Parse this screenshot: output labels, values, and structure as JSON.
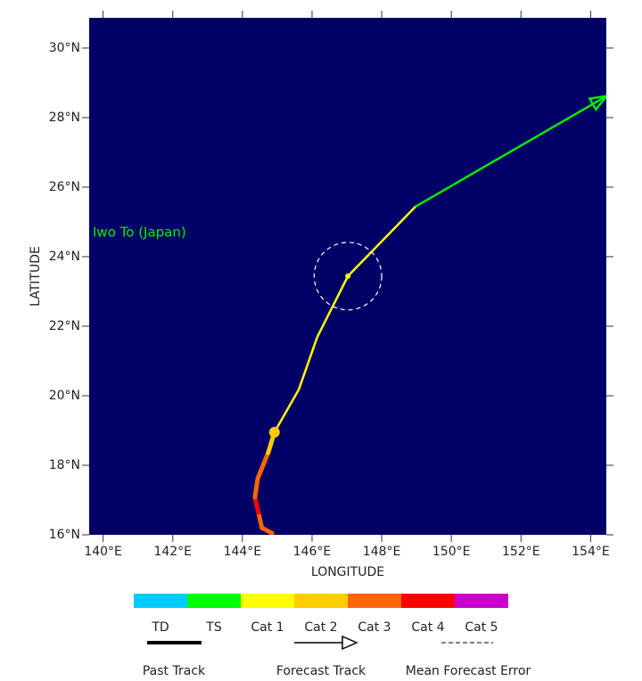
{
  "chart_data": {
    "type": "track",
    "background": "#000066",
    "xlabel": "LONGITUDE",
    "ylabel": "LATITUDE",
    "xlim": [
      139.6,
      154.45
    ],
    "ylim": [
      16,
      30.87
    ],
    "xticks": [
      {
        "value": 140,
        "label": "140°E"
      },
      {
        "value": 142,
        "label": "142°E"
      },
      {
        "value": 144,
        "label": "144°E"
      },
      {
        "value": 146,
        "label": "146°E"
      },
      {
        "value": 148,
        "label": "148°E"
      },
      {
        "value": 150,
        "label": "150°E"
      },
      {
        "value": 152,
        "label": "152°E"
      },
      {
        "value": 154,
        "label": "154°E"
      }
    ],
    "yticks": [
      {
        "value": 16,
        "label": "16°N"
      },
      {
        "value": 18,
        "label": "18°N"
      },
      {
        "value": 20,
        "label": "20°N"
      },
      {
        "value": 22,
        "label": "22°N"
      },
      {
        "value": 24,
        "label": "24°N"
      },
      {
        "value": 26,
        "label": "26°N"
      },
      {
        "value": 28,
        "label": "28°N"
      },
      {
        "value": 30,
        "label": "30°N"
      }
    ],
    "place_label": "Iwo To (Japan)",
    "place_color": "#00ee00",
    "past_track": {
      "lon": [
        144.85,
        144.56,
        144.46,
        144.36,
        144.44,
        144.74,
        144.92
      ],
      "lat": [
        16.05,
        16.2,
        16.64,
        17.08,
        17.62,
        18.36,
        18.95
      ],
      "colors": [
        "#ff6600",
        "#ff6600",
        "#ff0000",
        "#ff6600",
        "#ff6600",
        "#ffcc00"
      ],
      "current_color": "#ffcc00"
    },
    "forecast_track": {
      "lon": [
        144.92,
        145.62,
        146.15,
        147.03,
        148.97,
        154.46
      ],
      "lat": [
        18.95,
        20.18,
        21.69,
        23.44,
        25.44,
        28.62
      ],
      "colors": [
        "#ffff00",
        "#ffff00",
        "#ffff00",
        "#ffff00",
        "#00ee00"
      ]
    },
    "error_circle": {
      "lon": 147.03,
      "lat": 23.44,
      "radius": 0.97
    },
    "intensity_scale": {
      "labels": [
        "TD",
        "TS",
        "Cat 1",
        "Cat 2",
        "Cat 3",
        "Cat 4",
        "Cat 5"
      ],
      "colors": [
        "#00ccff",
        "#00ff00",
        "#ffff00",
        "#ffcc00",
        "#ff6600",
        "#ff0000",
        "#cc00cc"
      ]
    },
    "track_legend": [
      "Past Track",
      "Forecast Track",
      "Mean Forecast Error"
    ]
  }
}
